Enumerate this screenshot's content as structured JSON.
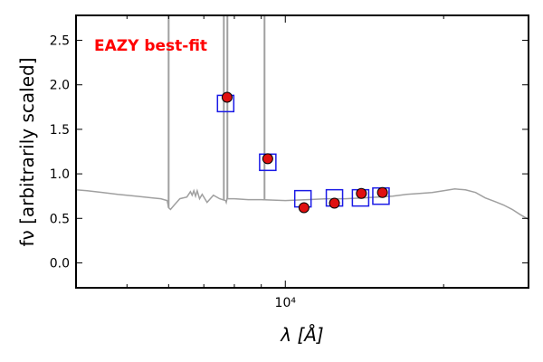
{
  "chart_data": {
    "type": "scatter",
    "annotation": "EAZY best-fit",
    "annotation_color": "#ff0000",
    "xlabel": "λ [Å]",
    "ylabel": "f_ν [arbitrarily scaled]",
    "x_scale": "log",
    "xlim": [
      4000,
      29000
    ],
    "ylim": [
      -0.28,
      2.78
    ],
    "x_tick_labels": [
      {
        "value": 10000,
        "label": "10⁴"
      }
    ],
    "y_ticks": [
      0.0,
      0.5,
      1.0,
      1.5,
      2.0,
      2.5
    ],
    "y_tick_labels": [
      "0.0",
      "0.5",
      "1.0",
      "1.5",
      "2.0",
      "2.5"
    ],
    "grid": false,
    "colors": {
      "sed": "#a0a0a0",
      "observed": "#e01010",
      "model_box": "#1a1ae6"
    },
    "series": [
      {
        "kind": "model-spectrum",
        "points": [
          [
            4000,
            0.82
          ],
          [
            4200,
            0.81
          ],
          [
            4500,
            0.79
          ],
          [
            4800,
            0.77
          ],
          [
            5000,
            0.76
          ],
          [
            5200,
            0.75
          ],
          [
            5400,
            0.74
          ],
          [
            5600,
            0.73
          ],
          [
            5800,
            0.72
          ],
          [
            5960,
            0.7
          ],
          [
            6000,
            0.62
          ],
          [
            6050,
            0.6
          ],
          [
            6150,
            0.65
          ],
          [
            6300,
            0.72
          ],
          [
            6500,
            0.74
          ],
          [
            6600,
            0.8
          ],
          [
            6650,
            0.76
          ],
          [
            6700,
            0.81
          ],
          [
            6750,
            0.75
          ],
          [
            6800,
            0.81
          ],
          [
            6870,
            0.72
          ],
          [
            6950,
            0.77
          ],
          [
            7100,
            0.68
          ],
          [
            7300,
            0.76
          ],
          [
            7500,
            0.72
          ],
          [
            7700,
            0.7
          ],
          [
            7720,
            0.68
          ],
          [
            7750,
            0.72
          ],
          [
            8000,
            0.72
          ],
          [
            8500,
            0.71
          ],
          [
            9000,
            0.71
          ],
          [
            10000,
            0.7
          ],
          [
            11000,
            0.71
          ],
          [
            12000,
            0.72
          ],
          [
            13000,
            0.72
          ],
          [
            14000,
            0.73
          ],
          [
            15000,
            0.74
          ],
          [
            16000,
            0.75
          ],
          [
            17000,
            0.77
          ],
          [
            18000,
            0.78
          ],
          [
            19000,
            0.79
          ],
          [
            20000,
            0.81
          ],
          [
            21000,
            0.83
          ],
          [
            22000,
            0.82
          ],
          [
            23000,
            0.79
          ],
          [
            24000,
            0.73
          ],
          [
            25000,
            0.69
          ],
          [
            26000,
            0.65
          ],
          [
            27000,
            0.6
          ],
          [
            28000,
            0.54
          ],
          [
            29000,
            0.49
          ]
        ]
      },
      {
        "kind": "emission-lines",
        "lines": [
          {
            "x": 6000,
            "peak": 2.78
          },
          {
            "x": 7640,
            "peak": 2.78
          },
          {
            "x": 7760,
            "peak": 2.78
          },
          {
            "x": 9130,
            "peak": 2.78
          }
        ]
      },
      {
        "kind": "model-photometry",
        "points": [
          {
            "x": 7700,
            "y": 1.79
          },
          {
            "x": 9260,
            "y": 1.13
          },
          {
            "x": 10800,
            "y": 0.72
          },
          {
            "x": 12400,
            "y": 0.73
          },
          {
            "x": 13900,
            "y": 0.73
          },
          {
            "x": 15200,
            "y": 0.75
          }
        ]
      },
      {
        "kind": "observed-photometry",
        "points": [
          {
            "x": 7750,
            "y": 1.86
          },
          {
            "x": 9260,
            "y": 1.17
          },
          {
            "x": 10850,
            "y": 0.62
          },
          {
            "x": 12400,
            "y": 0.67
          },
          {
            "x": 13950,
            "y": 0.78
          },
          {
            "x": 15300,
            "y": 0.79
          }
        ]
      }
    ]
  }
}
